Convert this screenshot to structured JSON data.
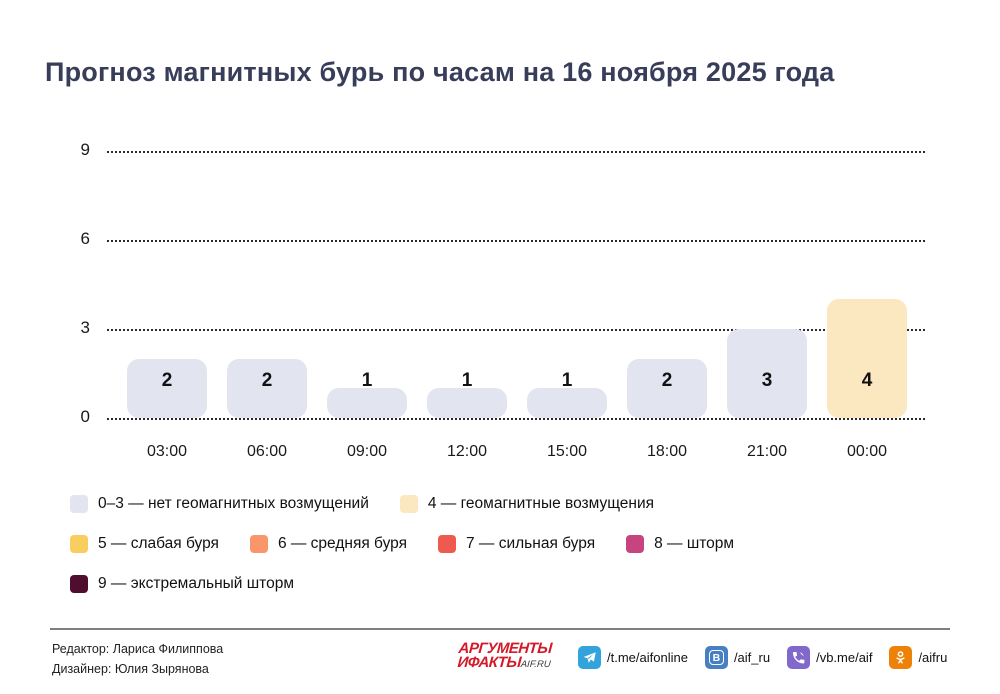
{
  "title": "Прогноз магнитных бурь по часам на 16 ноября 2025 года",
  "chart_data": {
    "type": "bar",
    "title": "Прогноз магнитных бурь по часам на 16 ноября 2025 года",
    "categories": [
      "03:00",
      "06:00",
      "09:00",
      "12:00",
      "15:00",
      "18:00",
      "21:00",
      "00:00"
    ],
    "values": [
      2,
      2,
      1,
      1,
      1,
      2,
      3,
      4
    ],
    "xlabel": "",
    "ylabel": "",
    "ylim": [
      0,
      9
    ],
    "yticks": [
      0,
      3,
      6,
      9
    ],
    "grid": "horizontal-dotted",
    "legend_position": "bottom",
    "bar_color_default": "#e2e4f0",
    "bar_color_kp4": "#fbe7c0"
  },
  "legend": {
    "rows": [
      [
        {
          "color": "#e2e4f0",
          "label": "0–3 — нет геомагнитных возмущений"
        },
        {
          "color": "#fbe7c0",
          "label": "4 — геомагнитные возмущения"
        }
      ],
      [
        {
          "color": "#f8ce60",
          "label": "5 — слабая буря"
        },
        {
          "color": "#f9976a",
          "label": "6 — средняя буря"
        },
        {
          "color": "#ee5a50",
          "label": "7 — сильная буря"
        },
        {
          "color": "#c8447e",
          "label": "8 — шторм"
        }
      ],
      [
        {
          "color": "#4f0e2e",
          "label": "9 — экстремальный шторм"
        }
      ]
    ]
  },
  "footer": {
    "credits": [
      "Редактор: Лариса Филиппова",
      "Дизайнер: Юлия Зырянова"
    ],
    "logo": {
      "line1": "АРГУМЕНТЫ",
      "line2": "ИФАКТЫ",
      "suffix": "AIF.RU"
    },
    "socials": [
      {
        "icon": "telegram-icon",
        "handle": "/t.me/aifonline",
        "color": "#33a3dc"
      },
      {
        "icon": "vk-icon",
        "handle": "/aif_ru",
        "color": "#4680c2"
      },
      {
        "icon": "viber-icon",
        "handle": "/vb.me/aif",
        "color": "#8268cc"
      },
      {
        "icon": "ok-icon",
        "handle": "/aifru",
        "color": "#ee8208"
      }
    ]
  }
}
